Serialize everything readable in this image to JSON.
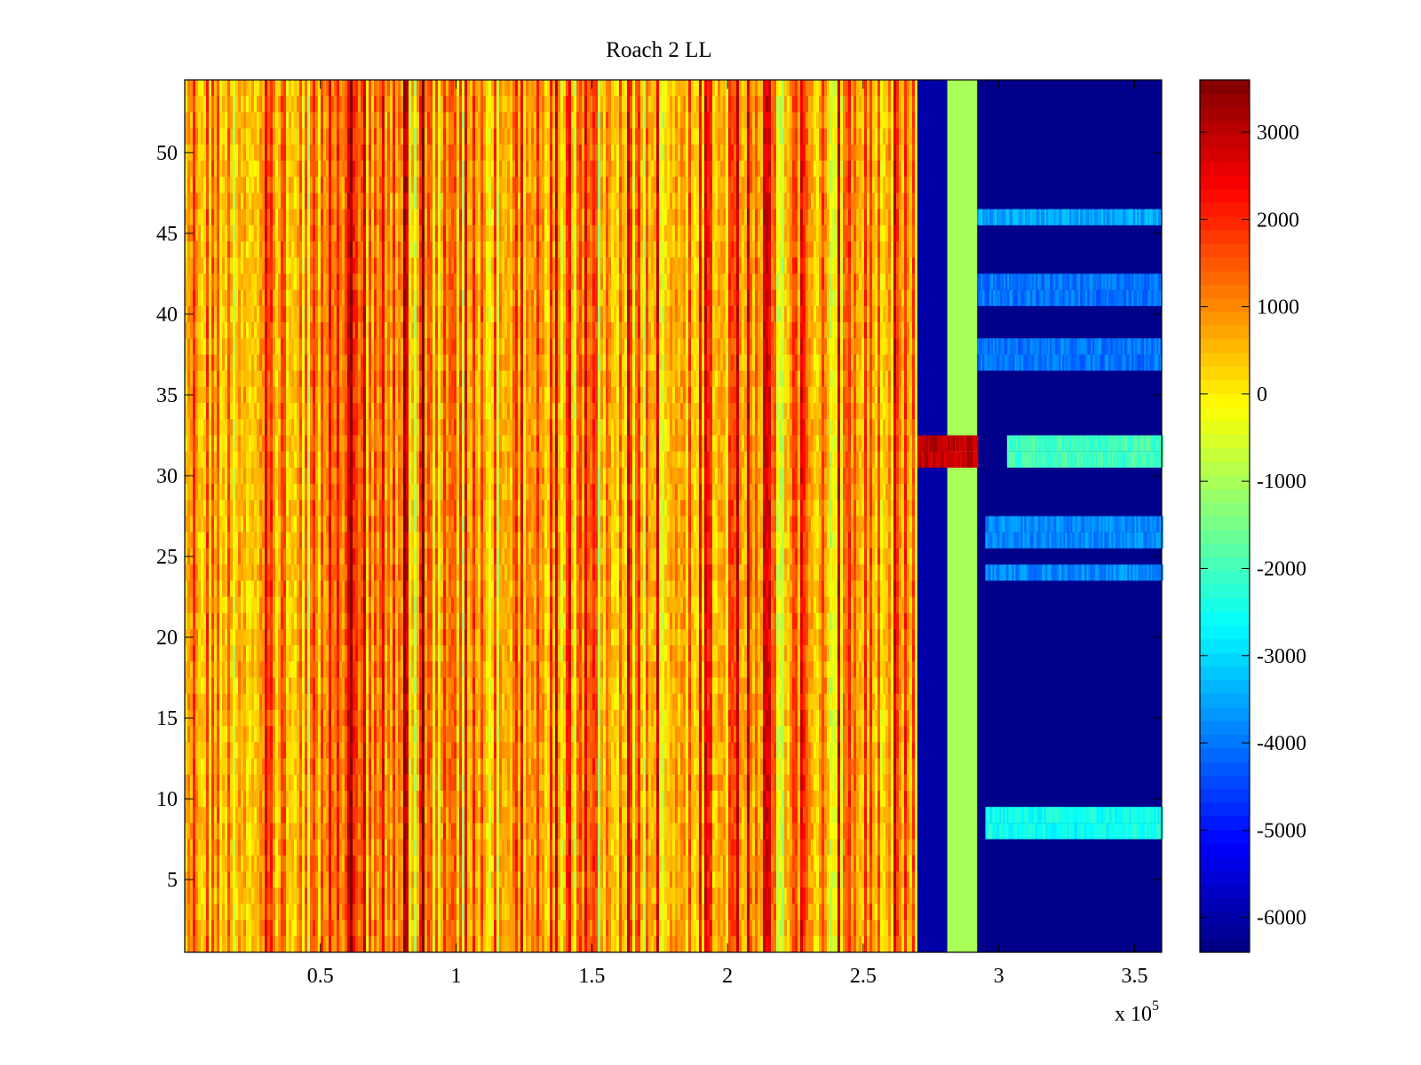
{
  "chart_data": {
    "type": "heatmap",
    "title": "Roach 2 LL",
    "xlabel": "",
    "ylabel": "",
    "x_multiplier_label": {
      "base": "x 10",
      "exponent": "5"
    },
    "xlim": [
      0,
      360000
    ],
    "ylim": [
      0.5,
      54.5
    ],
    "x_ticks": [
      0.5,
      1,
      1.5,
      2,
      2.5,
      3,
      3.5
    ],
    "x_tick_labels": [
      "0.5",
      "1",
      "1.5",
      "2",
      "2.5",
      "3",
      "3.5"
    ],
    "y_ticks": [
      5,
      10,
      15,
      20,
      25,
      30,
      35,
      40,
      45,
      50
    ],
    "y_tick_labels": [
      "5",
      "10",
      "15",
      "20",
      "25",
      "30",
      "35",
      "40",
      "45",
      "50"
    ],
    "rows": 54,
    "colormap": "jet",
    "clim": [
      -6400,
      3600
    ],
    "colorbar_ticks": [
      3000,
      2000,
      1000,
      0,
      -1000,
      -2000,
      -3000,
      -4000,
      -5000,
      -6000
    ],
    "colorbar_tick_labels": [
      "3000",
      "2000",
      "1000",
      "0",
      "-1000",
      "-2000",
      "-3000",
      "-4000",
      "-5000",
      "-6000"
    ],
    "regions": [
      {
        "x_range": [
          0,
          270000
        ],
        "value_range": [
          -1500,
          2800
        ],
        "description": "active band, mostly yellow-orange with darker red stripes"
      },
      {
        "x_range": [
          270000,
          281000
        ],
        "value": -6000
      },
      {
        "x_range": [
          281000,
          292000
        ],
        "value": -1000
      },
      {
        "x_range": [
          292000,
          360000
        ],
        "value": -6300
      }
    ],
    "highlighted_rows": [
      {
        "rows": [
          31,
          32
        ],
        "x_range": [
          270000,
          292000
        ],
        "value": 3000
      },
      {
        "rows": [
          31,
          32
        ],
        "x_range": [
          303000,
          360000
        ],
        "value": -2000
      },
      {
        "rows": [
          46
        ],
        "x_range": [
          292000,
          360000
        ],
        "value": -3500
      },
      {
        "rows": [
          41,
          42
        ],
        "x_range": [
          292000,
          360000
        ],
        "value": -4000
      },
      {
        "rows": [
          37,
          38
        ],
        "x_range": [
          292000,
          360000
        ],
        "value": -4000
      },
      {
        "rows": [
          24,
          26,
          27
        ],
        "x_range": [
          295000,
          360000
        ],
        "value": -3800
      },
      {
        "rows": [
          8,
          9
        ],
        "x_range": [
          295000,
          360000
        ],
        "value": -2500
      }
    ]
  }
}
